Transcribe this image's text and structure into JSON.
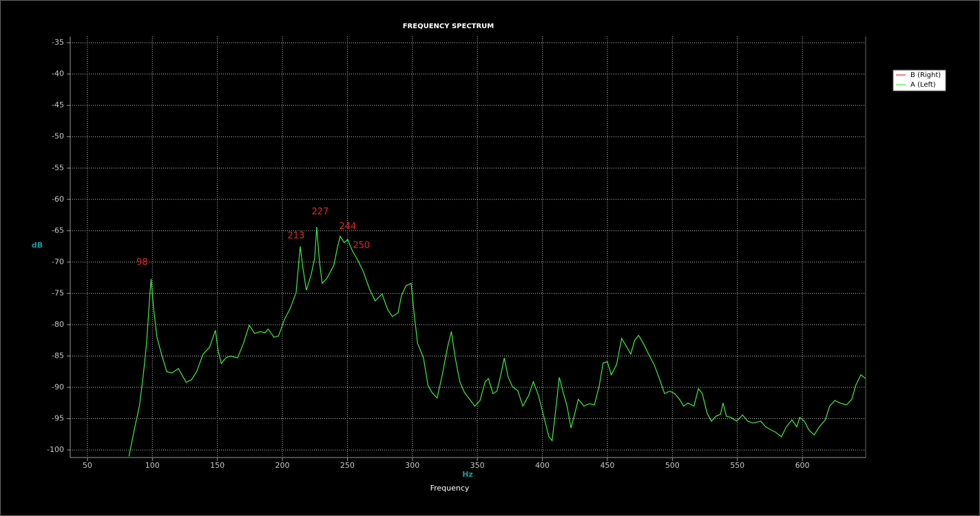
{
  "chart_data": {
    "type": "line",
    "title": "FREQUENCY SPECTRUM",
    "xlabel": "Frequency",
    "xunit": "Hz",
    "ylabel": "dB",
    "xlim": [
      36.8,
      648.7
    ],
    "ylim": [
      -101.2,
      -34
    ],
    "xticks": [
      50,
      100,
      150,
      200,
      250,
      300,
      350,
      400,
      450,
      500,
      550,
      600
    ],
    "yticks": [
      -35,
      -40,
      -45,
      -50,
      -55,
      -60,
      -65,
      -70,
      -75,
      -80,
      -85,
      -90,
      -95,
      -100
    ],
    "grid": true,
    "legend": "right",
    "series": [
      {
        "name": "B (Right)",
        "color": "#ff2020",
        "x": [],
        "values": []
      },
      {
        "name": "A (Left)",
        "color": "#3cf03c",
        "x": [
          82,
          86,
          90,
          93,
          95.5,
          98,
          99,
          101,
          103.5,
          107,
          111,
          115,
          120,
          126,
          130,
          134,
          139,
          144,
          148.5,
          150.6,
          153,
          156.5,
          160,
          165.5,
          170,
          174.5,
          178.7,
          183,
          186.6,
          189,
          193.5,
          197,
          201.5,
          206,
          210.5,
          213.7,
          215.8,
          218.4,
          222,
          224.8,
          226.4,
          228.5,
          230.6,
          234.3,
          239.6,
          242.3,
          244.4,
          247.6,
          250.2,
          254,
          258,
          262.4,
          267,
          271.4,
          276.7,
          281,
          284.6,
          289,
          291.5,
          295,
          299,
          301.6,
          304,
          308.5,
          312,
          315,
          319,
          323,
          327,
          330,
          333,
          336.5,
          340,
          344,
          348,
          352,
          356,
          358.5,
          362,
          365,
          368,
          370.7,
          373.6,
          377,
          381,
          385,
          389.5,
          393,
          397,
          401,
          405,
          407.5,
          410,
          413,
          416,
          419,
          422,
          425,
          427.6,
          432,
          436,
          440,
          443.8,
          446.7,
          450,
          453,
          457,
          461,
          465,
          468,
          471,
          474,
          478,
          481.7,
          486,
          490,
          494,
          498,
          501.8,
          505.5,
          508.6,
          512,
          516.6,
          520,
          523,
          526.7,
          530,
          533.6,
          537,
          539,
          541.5,
          545,
          549.5,
          554,
          558,
          562,
          568,
          571.7,
          576,
          579,
          583.9,
          587.6,
          592,
          595.7,
          598,
          601.6,
          605,
          609,
          613,
          617.6,
          621,
          625,
          629,
          634,
          638,
          641,
          645,
          648.7
        ],
        "values": [
          -101,
          -96.8,
          -93,
          -88,
          -83,
          -75.4,
          -72.7,
          -77.6,
          -82,
          -84.7,
          -87.5,
          -87.7,
          -87,
          -89.2,
          -88.8,
          -87.5,
          -84.7,
          -83.6,
          -80.9,
          -84.2,
          -86.2,
          -85.3,
          -85,
          -85.3,
          -83,
          -80.1,
          -81.4,
          -81.1,
          -81.3,
          -80.7,
          -82,
          -81.8,
          -79.2,
          -77.4,
          -74.9,
          -67.5,
          -71,
          -74.5,
          -72.1,
          -69.4,
          -64.4,
          -69.9,
          -73.4,
          -72.6,
          -70.5,
          -67.7,
          -65.9,
          -66.9,
          -66.4,
          -68.3,
          -69.7,
          -71.6,
          -74.3,
          -76.2,
          -75.1,
          -77.6,
          -78.7,
          -78.1,
          -75.4,
          -73.8,
          -73.4,
          -78.7,
          -83,
          -85.3,
          -89.7,
          -90.8,
          -91.7,
          -88,
          -83.6,
          -81.1,
          -85.3,
          -89.1,
          -90.8,
          -91.9,
          -93,
          -92.1,
          -89.1,
          -88.6,
          -91,
          -90.6,
          -88,
          -85.3,
          -88.3,
          -89.9,
          -90.5,
          -93,
          -91.3,
          -89.1,
          -91.3,
          -94.6,
          -97.9,
          -98.5,
          -94.1,
          -88.4,
          -90.8,
          -93,
          -96.5,
          -94.1,
          -91.9,
          -93,
          -92.6,
          -92.8,
          -89.7,
          -86.1,
          -85.9,
          -88,
          -86.4,
          -82.2,
          -83.6,
          -84.7,
          -82.5,
          -81.7,
          -83.1,
          -84.7,
          -86.4,
          -88.6,
          -91,
          -90.6,
          -91,
          -91.9,
          -93,
          -92.5,
          -93,
          -90.2,
          -91,
          -94.1,
          -95.4,
          -94.6,
          -94.3,
          -92.5,
          -94.6,
          -94.8,
          -95.4,
          -94.4,
          -95.4,
          -95.7,
          -95.4,
          -96.3,
          -96.8,
          -97.1,
          -97.9,
          -96.3,
          -95.2,
          -96.3,
          -94.8,
          -95.4,
          -96.8,
          -97.6,
          -96.3,
          -95.2,
          -93,
          -92.1,
          -92.5,
          -92.8,
          -91.9,
          -89.7,
          -88,
          -88.6
        ]
      }
    ],
    "annotations": [
      {
        "label": "98",
        "x": 99,
        "y": -72.7,
        "color": "#e0282e"
      },
      {
        "label": "213",
        "x": 213.7,
        "y": -67.5,
        "color": "#e0282e"
      },
      {
        "label": "227",
        "x": 226.4,
        "y": -64.4,
        "color": "#e0282e"
      },
      {
        "label": "244",
        "x": 244.4,
        "y": -65.9,
        "color": "#e0282e"
      },
      {
        "label": "250",
        "x": 250.2,
        "y": -66.4,
        "color": "#e0282e"
      }
    ]
  }
}
